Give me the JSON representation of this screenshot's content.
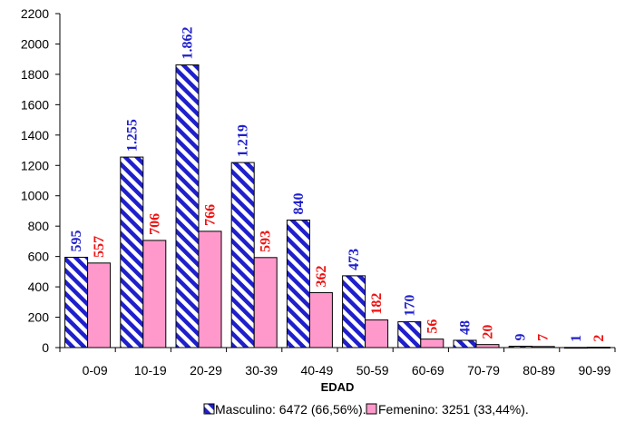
{
  "chart_data": {
    "type": "bar",
    "title": "",
    "xlabel": "EDAD",
    "ylabel": "",
    "categories": [
      "0-09",
      "10-19",
      "20-29",
      "30-39",
      "40-49",
      "50-59",
      "60-69",
      "70-79",
      "80-89",
      "90-99"
    ],
    "series": [
      {
        "name": "Masculino: 6472 (66,56%).",
        "values": [
          595,
          1255,
          1862,
          1219,
          840,
          473,
          170,
          48,
          9,
          1
        ],
        "labels": [
          "595",
          "1.255",
          "1.862",
          "1.219",
          "840",
          "473",
          "170",
          "48",
          "9",
          "1"
        ],
        "color": "#1f1fcc",
        "fill": "blue-white-diagonal-stripes"
      },
      {
        "name": "Femenino: 3251 (33,44%).",
        "values": [
          557,
          706,
          766,
          593,
          362,
          182,
          56,
          20,
          7,
          2
        ],
        "labels": [
          "557",
          "706",
          "766",
          "593",
          "362",
          "182",
          "56",
          "20",
          "7",
          "2"
        ],
        "color": "#ff99cc",
        "label_color": "#ee1111"
      }
    ],
    "ylim": [
      0,
      2200
    ],
    "yticks": [
      "0",
      "200",
      "400",
      "600",
      "800",
      "1000",
      "1200",
      "1400",
      "1600",
      "1800",
      "2000",
      "2200"
    ],
    "grid": false,
    "legend_position": "bottom"
  }
}
